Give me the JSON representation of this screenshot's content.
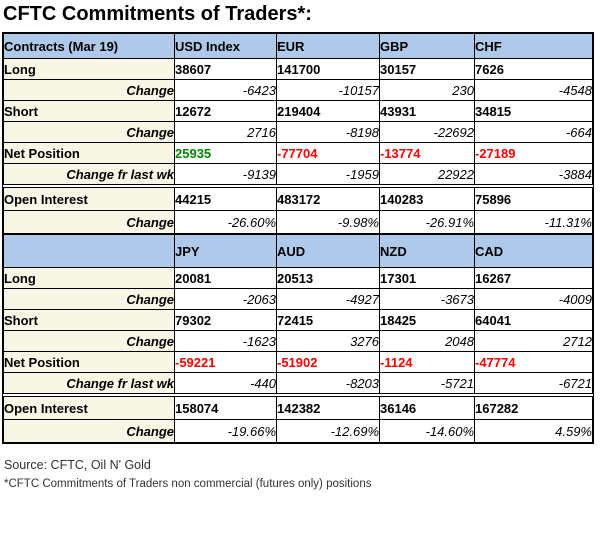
{
  "title": "CFTC Commitments of Traders*:",
  "colors": {
    "positive": "#008800",
    "negative": "#ff0000"
  },
  "footer": {
    "source": "Source: CFTC, Oil N' Gold",
    "note": "*CFTC Commitments of Traders non commercial (futures only) positions"
  },
  "chart_data": [
    {
      "type": "table",
      "title": "CFTC Commitments of Traders (majors)",
      "columns": [
        "Contracts (Mar 19)",
        "USD Index",
        "EUR",
        "GBP",
        "CHF"
      ],
      "rows": [
        [
          "Long",
          "38607",
          "141700",
          "30157",
          "7626"
        ],
        [
          "Change",
          "-6423",
          "-10157",
          "230",
          "-4548"
        ],
        [
          "Short",
          "12672",
          "219404",
          "43931",
          "34815"
        ],
        [
          "Change",
          "2716",
          "-8198",
          "-22692",
          "-664"
        ],
        [
          "Net Position",
          "25935",
          "-77704",
          "-13774",
          "-27189"
        ],
        [
          "Change fr last wk",
          "-9139",
          "-1959",
          "22922",
          "-3884"
        ],
        [
          "Open Interest",
          "44215",
          "483172",
          "140283",
          "75896"
        ],
        [
          "Change",
          "-26.60%",
          "-9.98%",
          "-26.91%",
          "-11.31%"
        ]
      ]
    },
    {
      "type": "table",
      "title": "CFTC Commitments of Traders (JPY AUD NZD CAD)",
      "columns": [
        "",
        "JPY",
        "AUD",
        "NZD",
        "CAD"
      ],
      "rows": [
        [
          "Long",
          "20081",
          "20513",
          "17301",
          "16267"
        ],
        [
          "Change",
          "-2063",
          "-4927",
          "-3673",
          "-4009"
        ],
        [
          "Short",
          "79302",
          "72415",
          "18425",
          "64041"
        ],
        [
          "Change",
          "-1623",
          "3276",
          "2048",
          "2712"
        ],
        [
          "Net Position",
          "-59221",
          "-51902",
          "-1124",
          "-47774"
        ],
        [
          "Change fr last wk",
          "-440",
          "-8203",
          "-5721",
          "-6721"
        ],
        [
          "Open Interest",
          "158074",
          "142382",
          "36146",
          "167282"
        ],
        [
          "Change",
          "-19.66%",
          "-12.69%",
          "-14.60%",
          "4.59%"
        ]
      ]
    }
  ]
}
